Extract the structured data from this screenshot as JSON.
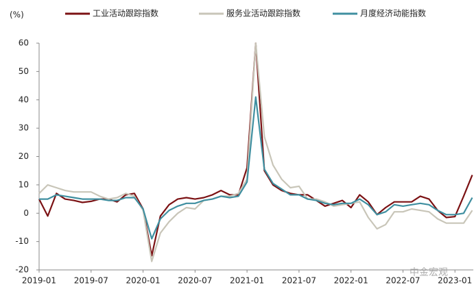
{
  "chart_data": {
    "type": "line",
    "y_label": "(%)",
    "watermark": "中金宏观",
    "x": [
      "2019-01",
      "2019-02",
      "2019-03",
      "2019-04",
      "2019-05",
      "2019-06",
      "2019-07",
      "2019-08",
      "2019-09",
      "2019-10",
      "2019-11",
      "2019-12",
      "2020-01",
      "2020-02",
      "2020-03",
      "2020-04",
      "2020-05",
      "2020-06",
      "2020-07",
      "2020-08",
      "2020-09",
      "2020-10",
      "2020-11",
      "2020-12",
      "2021-01",
      "2021-02",
      "2021-03",
      "2021-04",
      "2021-05",
      "2021-06",
      "2021-07",
      "2021-08",
      "2021-09",
      "2021-10",
      "2021-11",
      "2021-12",
      "2022-01",
      "2022-02",
      "2022-03",
      "2022-04",
      "2022-05",
      "2022-06",
      "2022-07",
      "2022-08",
      "2022-09",
      "2022-10",
      "2022-11",
      "2022-12",
      "2023-01",
      "2023-02",
      "2023-03"
    ],
    "series": [
      {
        "name": "工业活动跟踪指数",
        "color": "#7b1113",
        "values": [
          5,
          -1,
          7,
          5,
          4.5,
          3.8,
          4.2,
          5,
          5,
          4,
          6.5,
          7,
          1.5,
          -15,
          -1,
          3,
          5,
          5.5,
          5,
          5.5,
          6.5,
          8,
          6.5,
          6.5,
          16,
          60,
          15,
          10,
          8,
          7,
          6.5,
          6.5,
          4.5,
          2.5,
          3.5,
          4.5,
          2,
          6.5,
          4,
          -0.5,
          2,
          4,
          4,
          4,
          6,
          5,
          1,
          -1.5,
          -1.2,
          6,
          13.5
        ]
      },
      {
        "name": "服务业活动跟踪指数",
        "color": "#c8c5b8",
        "values": [
          7,
          10,
          9,
          8,
          7.5,
          7.5,
          7.5,
          6,
          5,
          5.5,
          7,
          6,
          1,
          -17,
          -7,
          -3,
          0,
          2,
          1.5,
          4.5,
          5,
          6,
          6,
          7,
          12,
          60,
          27,
          17,
          12,
          9,
          9.5,
          5,
          5,
          4,
          2.5,
          3,
          3.5,
          4,
          -1.5,
          -5.5,
          -4,
          0.5,
          0.5,
          1.5,
          1,
          0.5,
          -2,
          -3.5,
          -3.5,
          -3.5,
          1
        ]
      },
      {
        "name": "月度经济动能指数",
        "color": "#3f8fa0",
        "values": [
          5,
          5,
          6.5,
          6,
          5.5,
          5,
          5,
          5,
          4.5,
          4.5,
          5.5,
          5.5,
          1.5,
          -9,
          -2,
          1,
          2.5,
          3.5,
          3.5,
          4.5,
          5,
          6,
          5.5,
          6,
          11,
          41,
          15.5,
          10.5,
          8.5,
          6.5,
          6.5,
          5,
          4.5,
          3.5,
          3,
          3.5,
          3.5,
          5,
          3,
          -0.5,
          0.5,
          3,
          2.5,
          3,
          3.5,
          3,
          1,
          -0.5,
          -0.5,
          0,
          5.5
        ]
      }
    ],
    "ylim": [
      -20,
      60
    ],
    "yticks": [
      -20,
      -10,
      0,
      10,
      20,
      30,
      40,
      50,
      60
    ],
    "xticks": [
      "2019-01",
      "2019-07",
      "2020-01",
      "2020-07",
      "2021-01",
      "2021-07",
      "2022-01",
      "2022-07",
      "2023-01"
    ]
  }
}
